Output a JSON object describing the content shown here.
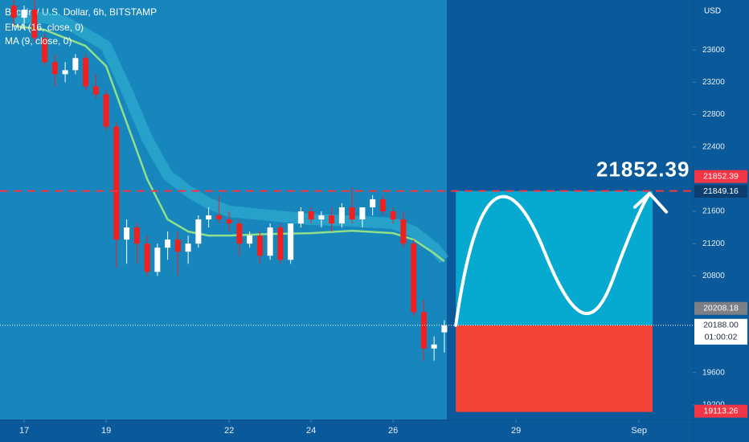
{
  "chart_data": {
    "type": "candlestick",
    "title": "Bitcoin / U.S. Dollar, 6h, BITSTAMP",
    "currency": "USD",
    "up_color": "#ffffff",
    "down_color": "#f0201e",
    "x": [
      16.75,
      17,
      17.25,
      17.5,
      17.75,
      18,
      18.25,
      18.5,
      18.75,
      19,
      19.25,
      19.5,
      19.75,
      20,
      20.25,
      20.5,
      20.75,
      21,
      21.25,
      21.5,
      21.75,
      22,
      22.25,
      22.5,
      22.75,
      23,
      23.25,
      23.5,
      23.75,
      24,
      24.25,
      24.5,
      24.75,
      25,
      25.25,
      25.5,
      25.75,
      26,
      26.25,
      26.5,
      26.75,
      27,
      27.25
    ],
    "open": [
      24150,
      24000,
      24100,
      23750,
      23450,
      23300,
      23350,
      23500,
      23150,
      23050,
      22650,
      21250,
      21400,
      21200,
      20850,
      21150,
      21250,
      21100,
      21200,
      21500,
      21550,
      21500,
      21450,
      21200,
      21300,
      21050,
      21400,
      21000,
      21450,
      21600,
      21500,
      21550,
      21450,
      21650,
      21500,
      21650,
      21750,
      21600,
      21500,
      21200,
      20350,
      19900,
      20100
    ],
    "high": [
      24250,
      24150,
      24250,
      23800,
      23550,
      23450,
      23550,
      23550,
      23300,
      23100,
      22700,
      21500,
      21450,
      21300,
      21200,
      21350,
      21350,
      21300,
      21550,
      21650,
      21800,
      21600,
      21500,
      21350,
      21350,
      21450,
      21450,
      21450,
      21650,
      21650,
      21600,
      21650,
      21700,
      21900,
      21650,
      21800,
      21800,
      21650,
      21600,
      21250,
      20500,
      20050,
      20250
    ],
    "low": [
      23900,
      23850,
      23700,
      23400,
      23150,
      23200,
      23300,
      23100,
      23000,
      22600,
      20900,
      20950,
      20950,
      20800,
      20800,
      21000,
      20800,
      20950,
      21150,
      21400,
      21450,
      21350,
      21050,
      21150,
      20950,
      21000,
      20950,
      20950,
      21400,
      21450,
      21400,
      21350,
      21400,
      21450,
      21400,
      21550,
      21550,
      21450,
      21150,
      20300,
      19750,
      19750,
      19850
    ],
    "close": [
      24000,
      24100,
      23750,
      23450,
      23300,
      23350,
      23500,
      23150,
      23050,
      22650,
      21250,
      21400,
      21200,
      20850,
      21150,
      21250,
      21100,
      21200,
      21500,
      21550,
      21500,
      21450,
      21200,
      21300,
      21050,
      21400,
      21000,
      21450,
      21600,
      21500,
      21550,
      21450,
      21650,
      21500,
      21650,
      21750,
      21600,
      21500,
      21200,
      20350,
      19900,
      19950,
      20188
    ],
    "indicators": [
      {
        "name": "EMA (16, close, 0)",
        "color": "#8ee08a",
        "x": [
          16.75,
          17.5,
          18,
          18.5,
          19,
          19.5,
          20,
          20.5,
          21,
          21.5,
          22,
          23,
          24,
          25,
          26,
          26.5,
          27,
          27.25
        ],
        "values": [
          23900,
          23850,
          23750,
          23650,
          23400,
          22700,
          22000,
          21500,
          21350,
          21300,
          21300,
          21320,
          21330,
          21360,
          21330,
          21250,
          21080,
          20980
        ]
      },
      {
        "name": "MA (9, close, 0)",
        "color": "#3cc3d6",
        "x": [
          16.75,
          17.5,
          18,
          18.5,
          19,
          19.5,
          20,
          20.5,
          21,
          21.5,
          22,
          23,
          24,
          25,
          26,
          26.5,
          27,
          27.25
        ],
        "values": [
          24000,
          24000,
          23950,
          23800,
          23650,
          23100,
          22500,
          22050,
          21850,
          21700,
          21600,
          21550,
          21500,
          21480,
          21450,
          21350,
          21150,
          21000
        ]
      }
    ],
    "xlim": [
      16.41,
      33.31
    ],
    "xticks": [
      17,
      19,
      22,
      24,
      26,
      29,
      {
        "value": 32,
        "label": "Sep"
      }
    ],
    "ylim": [
      19020,
      24220
    ],
    "yticks": [
      19200,
      19600,
      20800,
      21200,
      21600,
      22400,
      22800,
      23200,
      23600
    ],
    "target": 21852.39,
    "target_color": "#f23645",
    "last_price": {
      "value": 20188,
      "label": "20188.00"
    },
    "countdown": "01:00:02",
    "stop": 19113.26,
    "stop_color": "#f23645",
    "markers": [
      {
        "value": 21849.16,
        "color": "#0c3f70"
      },
      {
        "value": 20208.18,
        "color": "#7d7f86"
      }
    ],
    "projection": {
      "x": [
        27.53,
        32.33
      ],
      "profit_color": "#06a9cf",
      "loss_color": "#f44336"
    }
  }
}
